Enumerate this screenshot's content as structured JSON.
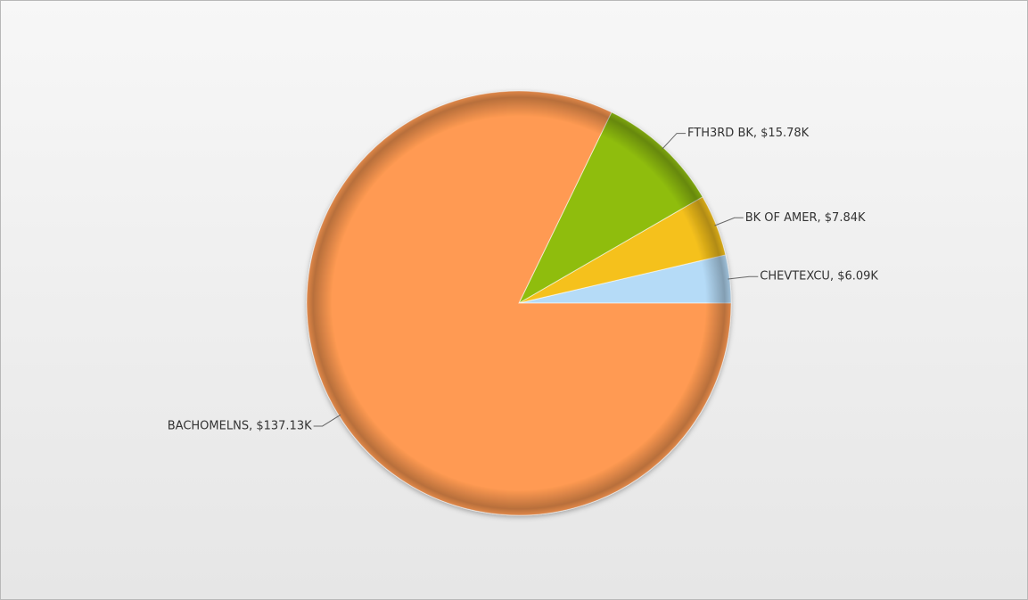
{
  "chart_data": {
    "type": "pie",
    "categories": [
      "CHEVTEXCU",
      "BK OF AMER",
      "FTH3RD BK",
      "BACHOMELNS"
    ],
    "values": [
      6.09,
      7.84,
      15.78,
      137.13
    ],
    "value_labels": [
      "CHEVTEXCU, $6.09K",
      "BK OF AMER, $7.84K",
      "FTH3RD BK, $15.78K",
      "BACHOMELNS, $137.13K"
    ],
    "colors": [
      "#b5dbf7",
      "#f5c11c",
      "#8fbd0f",
      "#ff9a52"
    ]
  }
}
